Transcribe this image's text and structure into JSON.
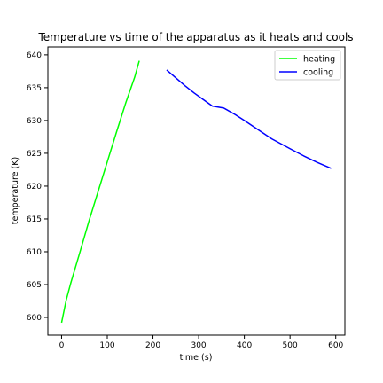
{
  "chart_data": {
    "type": "line",
    "title": "Temperature vs time of the apparatus as it heats and cools",
    "xlabel": "time (s)",
    "ylabel": "temperature (K)",
    "xlim": [
      -30,
      620
    ],
    "ylim": [
      597.3,
      641.2
    ],
    "xticks": [
      0,
      100,
      200,
      300,
      400,
      500,
      600
    ],
    "yticks": [
      600,
      605,
      610,
      615,
      620,
      625,
      630,
      635,
      640
    ],
    "grid": false,
    "legend_position": "top-right",
    "series": [
      {
        "name": "heating",
        "color": "#00ff00",
        "x": [
          0,
          10,
          20,
          40,
          60,
          80,
          100,
          120,
          140,
          160,
          170
        ],
        "y": [
          599.2,
          602.6,
          605.2,
          609.9,
          614.7,
          619.2,
          623.7,
          628.2,
          632.6,
          636.6,
          639.1
        ]
      },
      {
        "name": "cooling",
        "color": "#0000ff",
        "x": [
          230,
          250,
          270,
          290,
          310,
          330,
          355,
          380,
          400,
          430,
          460,
          500,
          530,
          560,
          590
        ],
        "y": [
          637.7,
          636.5,
          635.3,
          634.2,
          633.2,
          632.2,
          631.9,
          630.9,
          630.0,
          628.6,
          627.2,
          625.7,
          624.6,
          623.6,
          622.7
        ]
      }
    ]
  }
}
